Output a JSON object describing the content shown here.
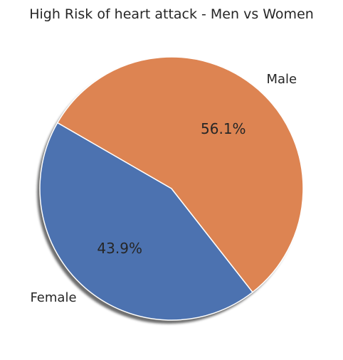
{
  "chart_data": {
    "type": "pie",
    "title": "High Risk of heart attack - Men vs Women",
    "categories": [
      "Female",
      "Male"
    ],
    "values": [
      43.9,
      56.1
    ],
    "labels": [
      "43.9%",
      "56.1%"
    ],
    "colors": [
      "#4c72b0",
      "#dd8452"
    ],
    "shadow": true,
    "legend": "none"
  }
}
